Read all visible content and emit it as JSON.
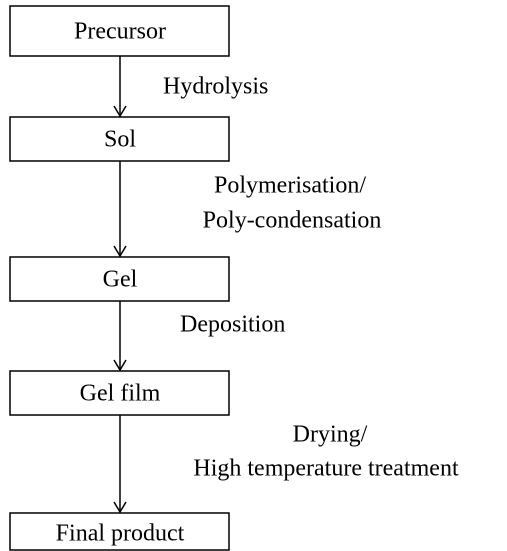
{
  "nodes": [
    {
      "label": "Precursor"
    },
    {
      "label": "Sol"
    },
    {
      "label": "Gel"
    },
    {
      "label": "Gel film"
    },
    {
      "label": "Final product"
    }
  ],
  "edges": [
    {
      "label": [
        "Hydrolysis"
      ]
    },
    {
      "label": [
        "Polymerisation/",
        "Poly-condensation"
      ]
    },
    {
      "label": [
        "Deposition"
      ]
    },
    {
      "label": [
        "Drying/",
        "High temperature treatment"
      ]
    }
  ]
}
